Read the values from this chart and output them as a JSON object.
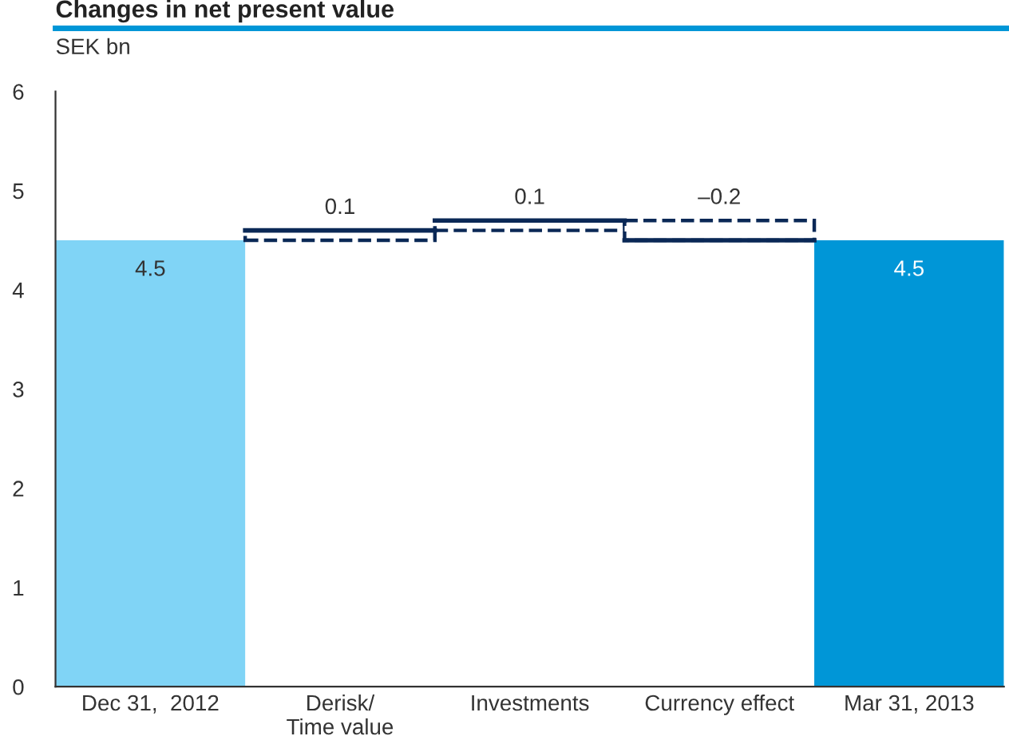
{
  "chart_data": {
    "type": "bar",
    "title": "Changes in net present value",
    "ylabel": "SEK bn",
    "categories": [
      "Dec 31,  2012",
      "Derisk/\nTime value",
      "Investments",
      "Currency effect",
      "Mar 31, 2013"
    ],
    "values": [
      4.5,
      0.1,
      0.1,
      -0.2,
      4.5
    ],
    "base": [
      0,
      4.5,
      4.6,
      4.7,
      0
    ],
    "colors": [
      "#80d4f6",
      "#ffffff",
      "#ffffff",
      "#ffffff",
      "#0096d7"
    ],
    "ylim": [
      0,
      6
    ],
    "yticks": [
      0,
      1,
      2,
      3,
      4,
      5,
      6
    ],
    "value_labels": [
      "4.5",
      "0.1",
      "0.1",
      "–0.2",
      "4.5"
    ],
    "grid": false,
    "line_style": "dashed"
  }
}
